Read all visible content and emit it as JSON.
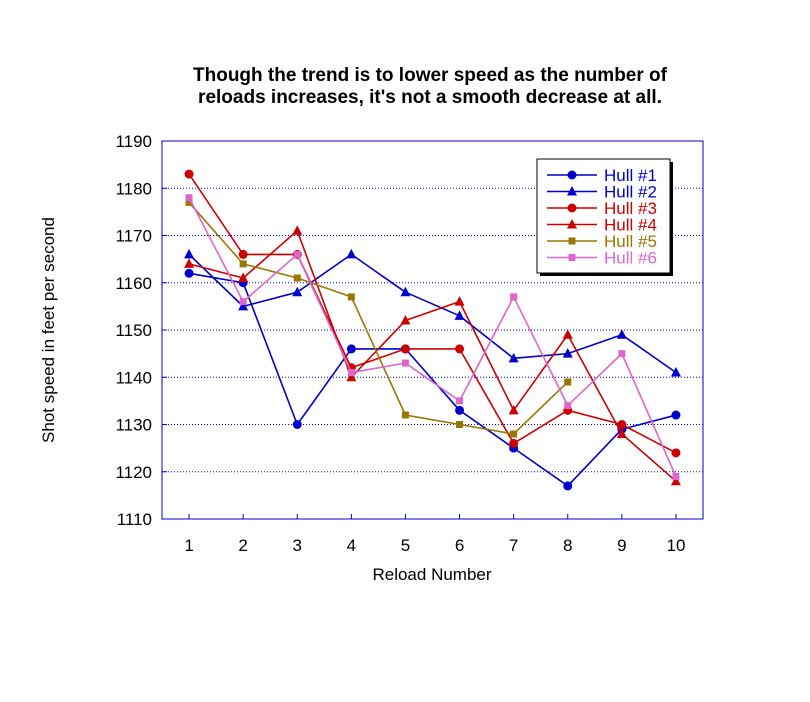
{
  "chart_data": {
    "type": "line",
    "title": [
      "Though the trend is to lower speed as the number of",
      "reloads increases, it's not a smooth decrease at all."
    ],
    "xlabel": "Reload Number",
    "ylabel": "Shot speed in feet per second",
    "categories": [
      "1",
      "2",
      "3",
      "4",
      "5",
      "6",
      "7",
      "8",
      "9",
      "10"
    ],
    "x": [
      1,
      2,
      3,
      4,
      5,
      6,
      7,
      8,
      9,
      10
    ],
    "xlim": [
      0.5,
      10.5
    ],
    "ylim": [
      1110,
      1190
    ],
    "yticks": [
      1110,
      1120,
      1130,
      1140,
      1150,
      1160,
      1170,
      1180,
      1190
    ],
    "grid": "horizontal dotted",
    "legend_position": "top-right",
    "series": [
      {
        "name": "Hull #1",
        "color": "#0000cc",
        "marker": "circle",
        "values": [
          1162,
          1160,
          1130,
          1146,
          1146,
          1133,
          1125,
          1117,
          1129,
          1132
        ]
      },
      {
        "name": "Hull #2",
        "color": "#0000cc",
        "marker": "triangle",
        "values": [
          1166,
          1155,
          1158,
          1166,
          1158,
          1153,
          1144,
          1145,
          1149,
          1141
        ]
      },
      {
        "name": "Hull #3",
        "color": "#cc0000",
        "marker": "circle",
        "values": [
          1183,
          1166,
          1166,
          1142,
          1146,
          1146,
          1126,
          1133,
          1130,
          1124
        ]
      },
      {
        "name": "Hull #4",
        "color": "#cc0000",
        "marker": "triangle",
        "values": [
          1164,
          1161,
          1171,
          1140,
          1152,
          1156,
          1133,
          1149,
          1128,
          1118
        ]
      },
      {
        "name": "Hull #5",
        "color": "#997700",
        "marker": "square",
        "values": [
          1177,
          1164,
          1161,
          1157,
          1132,
          1130,
          1128,
          1139,
          null,
          null
        ]
      },
      {
        "name": "Hull #6",
        "color": "#dd66cc",
        "marker": "square",
        "values": [
          1178,
          1156,
          1166,
          1141,
          1143,
          1135,
          1157,
          1134,
          1145,
          1119
        ]
      }
    ]
  }
}
